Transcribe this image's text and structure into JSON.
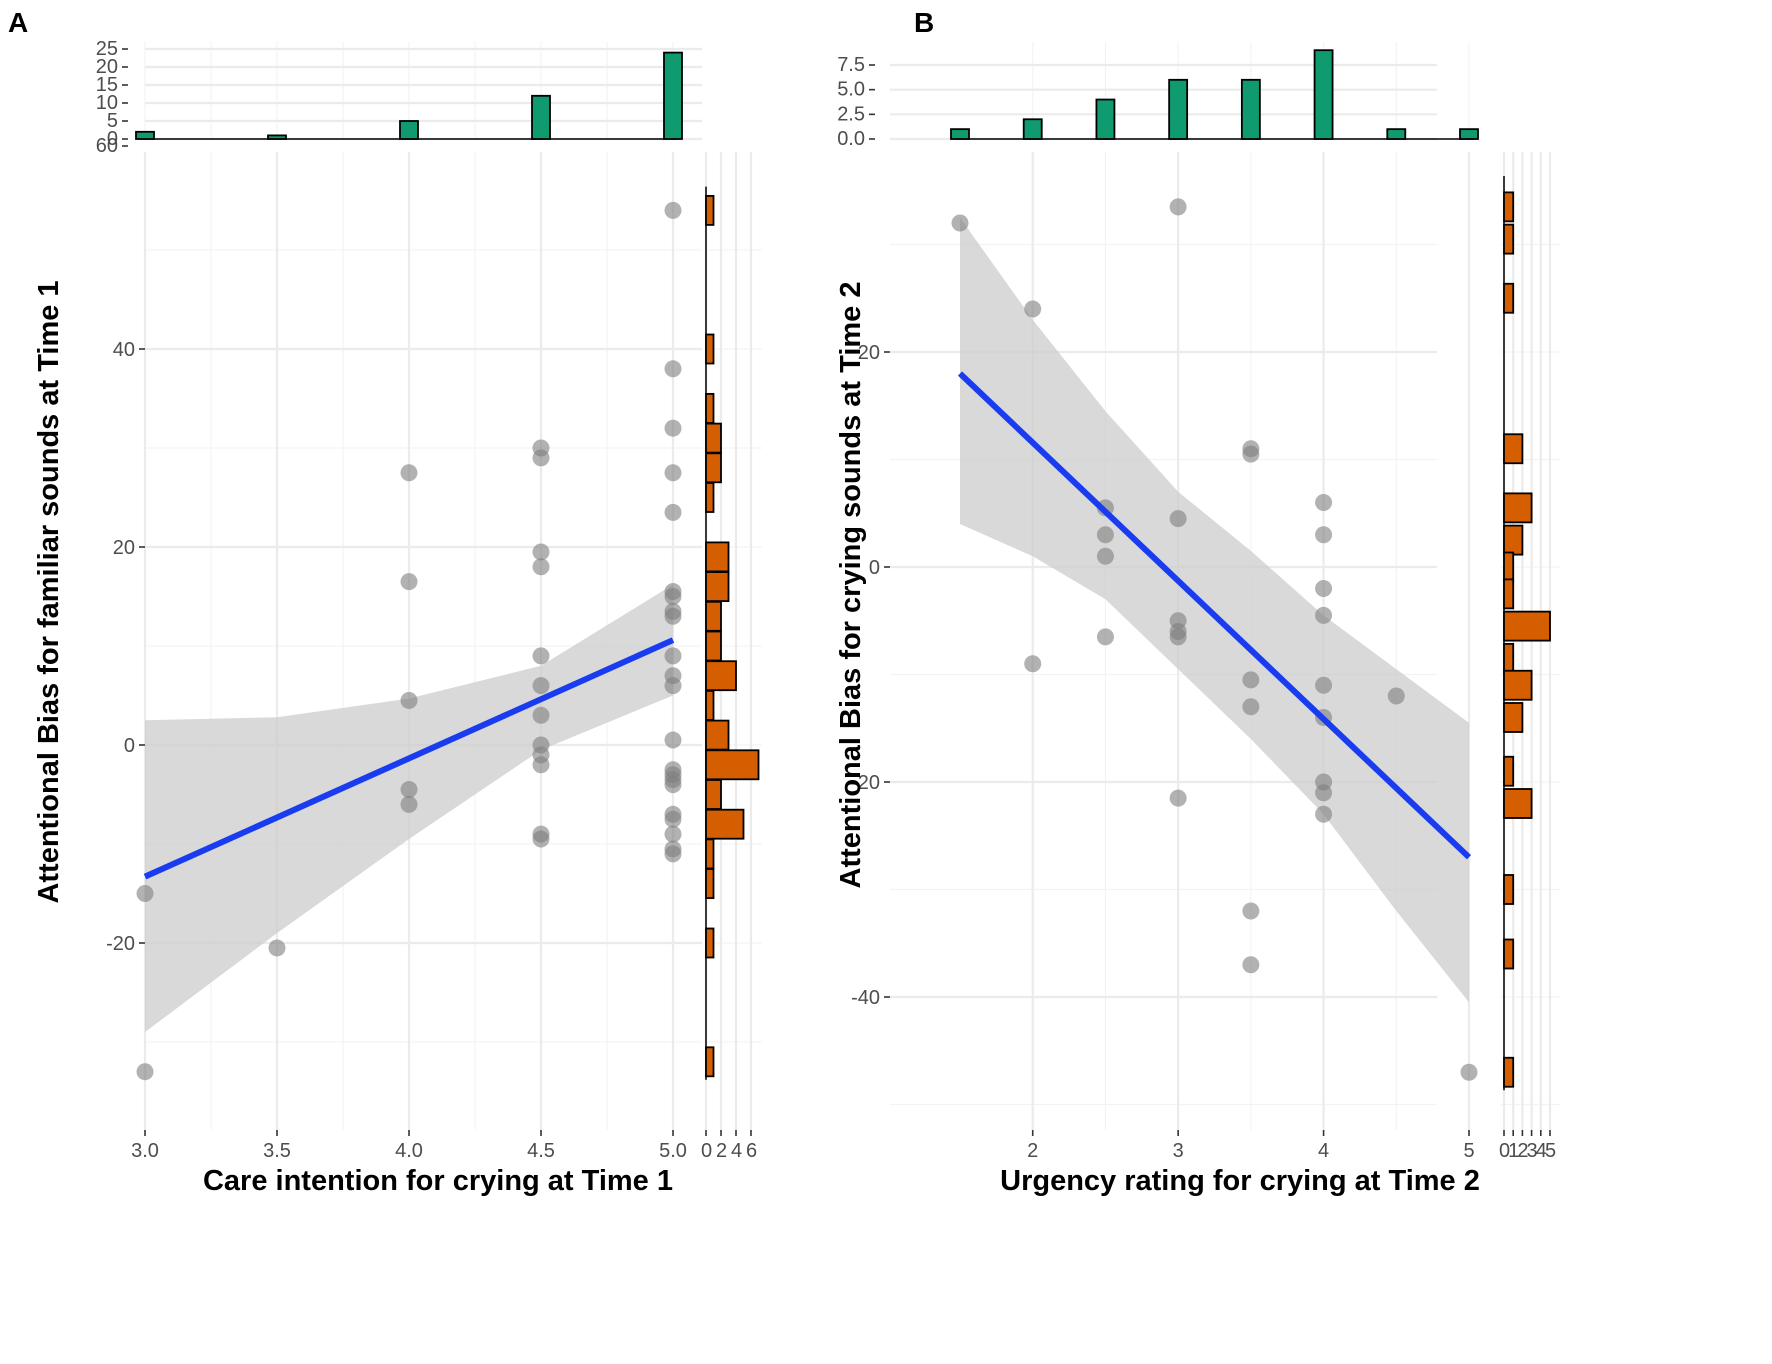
{
  "figure": {
    "panel_a_letter": "A",
    "panel_b_letter": "B"
  },
  "colors": {
    "points": "#7f7f7f",
    "line": "#1a3cf0",
    "ribbon": "#cccccc",
    "top_hist": "#109a70",
    "side_hist": "#d55e00"
  },
  "chart_data": [
    {
      "type": "scatter",
      "panel": "A",
      "xlabel": "Care intention for crying at Time 1",
      "ylabel": "Attentional Bias for familiar sounds at Time 1",
      "xlim": [
        3.0,
        5.0
      ],
      "ylim": [
        -38,
        56
      ],
      "x_ticks": [
        "3.0",
        "3.5",
        "4.0",
        "4.5",
        "5.0"
      ],
      "y_ticks": [
        "-20",
        "0",
        "20",
        "40"
      ],
      "points": [
        {
          "x": 3.0,
          "y": -15.0
        },
        {
          "x": 3.0,
          "y": -33.0
        },
        {
          "x": 3.5,
          "y": -20.5
        },
        {
          "x": 4.0,
          "y": 27.5
        },
        {
          "x": 4.0,
          "y": 16.5
        },
        {
          "x": 4.0,
          "y": 4.5
        },
        {
          "x": 4.0,
          "y": -4.5
        },
        {
          "x": 4.0,
          "y": -6.0
        },
        {
          "x": 4.5,
          "y": 30.0
        },
        {
          "x": 4.5,
          "y": 29.0
        },
        {
          "x": 4.5,
          "y": 19.5
        },
        {
          "x": 4.5,
          "y": 18.0
        },
        {
          "x": 4.5,
          "y": 9.0
        },
        {
          "x": 4.5,
          "y": 6.0
        },
        {
          "x": 4.5,
          "y": 3.0
        },
        {
          "x": 4.5,
          "y": 0.0
        },
        {
          "x": 4.5,
          "y": -1.0
        },
        {
          "x": 4.5,
          "y": -2.0
        },
        {
          "x": 4.5,
          "y": -9.0
        },
        {
          "x": 4.5,
          "y": -9.5
        },
        {
          "x": 5.0,
          "y": 54.0
        },
        {
          "x": 5.0,
          "y": 38.0
        },
        {
          "x": 5.0,
          "y": 32.0
        },
        {
          "x": 5.0,
          "y": 27.5
        },
        {
          "x": 5.0,
          "y": 23.5
        },
        {
          "x": 5.0,
          "y": 15.5
        },
        {
          "x": 5.0,
          "y": 15.0
        },
        {
          "x": 5.0,
          "y": 13.5
        },
        {
          "x": 5.0,
          "y": 13.0
        },
        {
          "x": 5.0,
          "y": 9.0
        },
        {
          "x": 5.0,
          "y": 7.0
        },
        {
          "x": 5.0,
          "y": 6.0
        },
        {
          "x": 5.0,
          "y": 0.5
        },
        {
          "x": 5.0,
          "y": -2.5
        },
        {
          "x": 5.0,
          "y": -3.0
        },
        {
          "x": 5.0,
          "y": -3.5
        },
        {
          "x": 5.0,
          "y": -4.0
        },
        {
          "x": 5.0,
          "y": -7.0
        },
        {
          "x": 5.0,
          "y": -7.5
        },
        {
          "x": 5.0,
          "y": -9.0
        },
        {
          "x": 5.0,
          "y": -10.5
        },
        {
          "x": 5.0,
          "y": -11.0
        }
      ],
      "fit_line": {
        "x": [
          3.0,
          5.0
        ],
        "y": [
          -13.3,
          10.6
        ]
      },
      "ribbon": {
        "x": [
          3.0,
          3.5,
          4.0,
          4.5,
          5.0
        ],
        "lower": [
          -29.0,
          -19.0,
          -9.5,
          -0.5,
          5.0
        ],
        "upper": [
          2.5,
          2.8,
          4.7,
          8.0,
          16.2
        ]
      },
      "top_hist": {
        "ticks": [
          "0",
          "5",
          "10",
          "15",
          "20",
          "25",
          "60"
        ],
        "bins": [
          {
            "x": 3.0,
            "count": 2
          },
          {
            "x": 3.5,
            "count": 1
          },
          {
            "x": 4.0,
            "count": 5
          },
          {
            "x": 4.5,
            "count": 12
          },
          {
            "x": 5.0,
            "count": 24
          }
        ]
      },
      "side_hist": {
        "ticks": [
          "0",
          "2",
          "4",
          "6"
        ],
        "bins": [
          {
            "y": 54,
            "count": 1
          },
          {
            "y": 40,
            "count": 1
          },
          {
            "y": 34,
            "count": 1
          },
          {
            "y": 31,
            "count": 2
          },
          {
            "y": 28,
            "count": 2
          },
          {
            "y": 25,
            "count": 1
          },
          {
            "y": 19,
            "count": 3
          },
          {
            "y": 16,
            "count": 3
          },
          {
            "y": 13,
            "count": 2
          },
          {
            "y": 10,
            "count": 2
          },
          {
            "y": 7,
            "count": 4
          },
          {
            "y": 4,
            "count": 1
          },
          {
            "y": 1,
            "count": 3
          },
          {
            "y": -2,
            "count": 7
          },
          {
            "y": -5,
            "count": 2
          },
          {
            "y": -8,
            "count": 5
          },
          {
            "y": -11,
            "count": 1
          },
          {
            "y": -14,
            "count": 1
          },
          {
            "y": -20,
            "count": 1
          },
          {
            "y": -32,
            "count": 1
          }
        ]
      }
    },
    {
      "type": "scatter",
      "panel": "B",
      "xlabel": "Urgency rating for crying at Time 2",
      "ylabel": "Attentional Bias for crying sounds at Time 2",
      "xlim": [
        1.5,
        5.0
      ],
      "ylim": [
        -50,
        36
      ],
      "x_ticks": [
        "2",
        "3",
        "4",
        "5"
      ],
      "y_ticks": [
        "-40",
        "-20",
        "0",
        "20"
      ],
      "points": [
        {
          "x": 1.5,
          "y": 32.0
        },
        {
          "x": 2.0,
          "y": 24.0
        },
        {
          "x": 2.0,
          "y": -9.0
        },
        {
          "x": 2.5,
          "y": 5.5
        },
        {
          "x": 2.5,
          "y": 3.0
        },
        {
          "x": 2.5,
          "y": 1.0
        },
        {
          "x": 2.5,
          "y": -6.5
        },
        {
          "x": 3.0,
          "y": 33.5
        },
        {
          "x": 3.0,
          "y": 4.5
        },
        {
          "x": 3.0,
          "y": -5.0
        },
        {
          "x": 3.0,
          "y": -6.0
        },
        {
          "x": 3.0,
          "y": -6.5
        },
        {
          "x": 3.0,
          "y": -21.5
        },
        {
          "x": 3.5,
          "y": 11.0
        },
        {
          "x": 3.5,
          "y": 10.5
        },
        {
          "x": 3.5,
          "y": -10.5
        },
        {
          "x": 3.5,
          "y": -13.0
        },
        {
          "x": 3.5,
          "y": -32.0
        },
        {
          "x": 3.5,
          "y": -37.0
        },
        {
          "x": 4.0,
          "y": 6.0
        },
        {
          "x": 4.0,
          "y": 3.0
        },
        {
          "x": 4.0,
          "y": -2.0
        },
        {
          "x": 4.0,
          "y": -4.5
        },
        {
          "x": 4.0,
          "y": -11.0
        },
        {
          "x": 4.0,
          "y": -14.0
        },
        {
          "x": 4.0,
          "y": -20.0
        },
        {
          "x": 4.0,
          "y": -21.0
        },
        {
          "x": 4.0,
          "y": -23.0
        },
        {
          "x": 4.5,
          "y": -12.0
        },
        {
          "x": 5.0,
          "y": -47.0
        }
      ],
      "fit_line": {
        "x": [
          1.5,
          5.0
        ],
        "y": [
          18.0,
          -27.0
        ]
      },
      "ribbon": {
        "x": [
          1.5,
          2.0,
          2.5,
          3.0,
          3.5,
          4.0,
          4.5,
          5.0
        ],
        "lower": [
          4.0,
          1.0,
          -3.0,
          -9.5,
          -16.0,
          -23.0,
          -32.0,
          -40.5
        ],
        "upper": [
          32.5,
          23.0,
          14.5,
          7.0,
          1.5,
          -4.5,
          -9.5,
          -14.5
        ]
      },
      "top_hist": {
        "ticks": [
          "0.0",
          "2.5",
          "5.0",
          "7.5"
        ],
        "bins": [
          {
            "x": 1.5,
            "count": 1
          },
          {
            "x": 2.0,
            "count": 2
          },
          {
            "x": 2.5,
            "count": 4
          },
          {
            "x": 3.0,
            "count": 6
          },
          {
            "x": 3.5,
            "count": 6
          },
          {
            "x": 4.0,
            "count": 9
          },
          {
            "x": 4.5,
            "count": 1
          },
          {
            "x": 5.0,
            "count": 1
          }
        ]
      },
      "side_hist": {
        "ticks": [
          "0",
          "1",
          "2",
          "3",
          "4",
          "5"
        ],
        "bins": [
          {
            "y": 33.5,
            "count": 1
          },
          {
            "y": 30.5,
            "count": 1
          },
          {
            "y": 25,
            "count": 1
          },
          {
            "y": 11,
            "count": 2
          },
          {
            "y": 5.5,
            "count": 3
          },
          {
            "y": 2.5,
            "count": 2
          },
          {
            "y": 0,
            "count": 1
          },
          {
            "y": -2.5,
            "count": 1
          },
          {
            "y": -5.5,
            "count": 5
          },
          {
            "y": -8.5,
            "count": 1
          },
          {
            "y": -11,
            "count": 3
          },
          {
            "y": -14,
            "count": 2
          },
          {
            "y": -19,
            "count": 1
          },
          {
            "y": -22,
            "count": 3
          },
          {
            "y": -30,
            "count": 1
          },
          {
            "y": -36,
            "count": 1
          },
          {
            "y": -47,
            "count": 1
          }
        ]
      }
    }
  ]
}
